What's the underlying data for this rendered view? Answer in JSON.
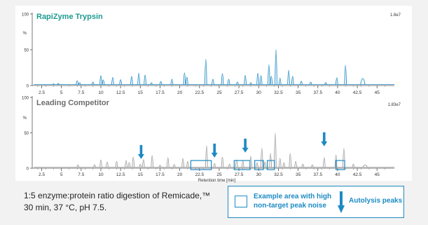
{
  "chart_data": [
    {
      "type": "line",
      "title": "RapiZyme Trypsin",
      "color": "#1d8ac4",
      "title_color": "#1e9b8f",
      "scale_label": "1.8e7",
      "ylabel": "%",
      "y_ticks": [
        0,
        50,
        100
      ],
      "ylim": [
        0,
        100
      ],
      "xlim": [
        1.3,
        47.2
      ],
      "x_ticks": [
        "2.5",
        "5",
        "7.5",
        "10",
        "12.5",
        "15",
        "17.5",
        "20",
        "22.5",
        "25",
        "27.5",
        "30",
        "32.5",
        "35",
        "37.5",
        "40",
        "42.5",
        "45"
      ],
      "peaks": [
        {
          "rt": 4.0,
          "y": 3
        },
        {
          "rt": 4.6,
          "y": 4
        },
        {
          "rt": 7.0,
          "y": 12
        },
        {
          "rt": 7.3,
          "y": 6
        },
        {
          "rt": 9.0,
          "y": 8
        },
        {
          "rt": 10.0,
          "y": 26
        },
        {
          "rt": 10.3,
          "y": 14
        },
        {
          "rt": 11.5,
          "y": 21
        },
        {
          "rt": 12.5,
          "y": 15
        },
        {
          "rt": 13.9,
          "y": 24
        },
        {
          "rt": 14.8,
          "y": 33
        },
        {
          "rt": 15.6,
          "y": 28
        },
        {
          "rt": 16.4,
          "y": 6
        },
        {
          "rt": 17.6,
          "y": 10
        },
        {
          "rt": 19.0,
          "y": 16
        },
        {
          "rt": 20.6,
          "y": 34
        },
        {
          "rt": 20.9,
          "y": 22
        },
        {
          "rt": 23.3,
          "y": 72
        },
        {
          "rt": 24.2,
          "y": 16
        },
        {
          "rt": 25.4,
          "y": 32
        },
        {
          "rt": 26.2,
          "y": 16
        },
        {
          "rt": 27.3,
          "y": 8
        },
        {
          "rt": 28.3,
          "y": 27
        },
        {
          "rt": 29.0,
          "y": 6
        },
        {
          "rt": 29.9,
          "y": 33
        },
        {
          "rt": 30.3,
          "y": 26
        },
        {
          "rt": 31.3,
          "y": 57
        },
        {
          "rt": 31.6,
          "y": 24
        },
        {
          "rt": 32.2,
          "y": 99
        },
        {
          "rt": 32.7,
          "y": 19
        },
        {
          "rt": 33.8,
          "y": 41
        },
        {
          "rt": 34.3,
          "y": 24
        },
        {
          "rt": 35.4,
          "y": 11
        },
        {
          "rt": 36.6,
          "y": 8
        },
        {
          "rt": 38.5,
          "y": 7
        },
        {
          "rt": 39.9,
          "y": 20
        },
        {
          "rt": 41.0,
          "y": 55
        },
        {
          "rt": 43.2,
          "y": 18
        }
      ]
    },
    {
      "type": "line",
      "title": "Leading Competitor",
      "color": "#9a9a9a",
      "title_color": "#6d6d6d",
      "scale_label": "1.83e7",
      "ylabel": "%",
      "y_ticks": [
        0,
        50,
        100
      ],
      "ylim": [
        0,
        100
      ],
      "xlim": [
        1.3,
        47.2
      ],
      "xlabel": "Retention time [min]",
      "x_ticks": [
        "2.5",
        "5",
        "7.5",
        "10",
        "12.5",
        "15",
        "17.5",
        "20",
        "22.5",
        "25",
        "27.5",
        "30",
        "32.5",
        "35",
        "37.5",
        "40",
        "42.5",
        "45"
      ],
      "peaks": [
        {
          "rt": 7.1,
          "y": 8
        },
        {
          "rt": 9.2,
          "y": 8
        },
        {
          "rt": 10.0,
          "y": 22
        },
        {
          "rt": 10.8,
          "y": 16
        },
        {
          "rt": 12.0,
          "y": 18
        },
        {
          "rt": 13.2,
          "y": 20
        },
        {
          "rt": 13.6,
          "y": 15
        },
        {
          "rt": 14.1,
          "y": 30
        },
        {
          "rt": 15.4,
          "y": 23
        },
        {
          "rt": 15.0,
          "y": 10
        },
        {
          "rt": 16.5,
          "y": 34
        },
        {
          "rt": 17.5,
          "y": 7
        },
        {
          "rt": 18.5,
          "y": 28
        },
        {
          "rt": 19.3,
          "y": 9
        },
        {
          "rt": 20.4,
          "y": 26
        },
        {
          "rt": 21.0,
          "y": 18
        },
        {
          "rt": 23.4,
          "y": 62
        },
        {
          "rt": 24.4,
          "y": 12
        },
        {
          "rt": 25.4,
          "y": 30
        },
        {
          "rt": 26.3,
          "y": 10
        },
        {
          "rt": 27.2,
          "y": 22
        },
        {
          "rt": 28.0,
          "y": 19
        },
        {
          "rt": 29.0,
          "y": 32
        },
        {
          "rt": 29.8,
          "y": 14
        },
        {
          "rt": 30.4,
          "y": 55
        },
        {
          "rt": 30.8,
          "y": 16
        },
        {
          "rt": 31.5,
          "y": 40
        },
        {
          "rt": 32.1,
          "y": 98
        },
        {
          "rt": 32.7,
          "y": 26
        },
        {
          "rt": 33.2,
          "y": 14
        },
        {
          "rt": 34.0,
          "y": 40
        },
        {
          "rt": 34.7,
          "y": 18
        },
        {
          "rt": 35.6,
          "y": 10
        },
        {
          "rt": 36.8,
          "y": 8
        },
        {
          "rt": 38.3,
          "y": 28
        },
        {
          "rt": 39.8,
          "y": 36
        },
        {
          "rt": 40.8,
          "y": 54
        },
        {
          "rt": 42.0,
          "y": 10
        },
        {
          "rt": 43.5,
          "y": 8
        }
      ],
      "autolysis_peaks_rt": [
        15.1,
        24.4,
        28.3,
        38.3
      ],
      "noise_regions_rt": [
        [
          21.4,
          24.0
        ],
        [
          26.9,
          28.9
        ],
        [
          29.5,
          30.6
        ],
        [
          31.1,
          32.0
        ],
        [
          39.8,
          40.9
        ]
      ]
    }
  ],
  "caption": {
    "line1": "1:5 enzyme:protein ratio digestion of Remicade,™",
    "line2": "30 min, 37 °C, pH 7.5."
  },
  "legend": {
    "box_label_line1": "Example area with high",
    "box_label_line2": "non-target peak noise",
    "arrow_label": "Autolysis peaks",
    "accent": "#1d8ac4"
  }
}
